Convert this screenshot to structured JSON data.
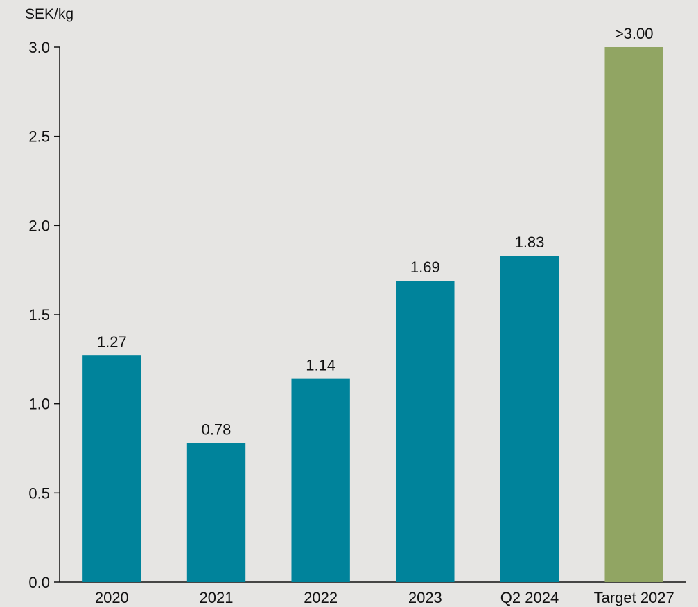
{
  "chart_data": {
    "type": "bar",
    "unit_label": "SEK/kg",
    "categories": [
      "2020",
      "2021",
      "2022",
      "2023",
      "Q2 2024",
      "Target 2027"
    ],
    "values": [
      1.27,
      0.78,
      1.14,
      1.69,
      1.83,
      3.0
    ],
    "data_labels": [
      "1.27",
      "0.78",
      "1.14",
      "1.69",
      "1.83",
      ">3.00"
    ],
    "bar_colors": [
      "#00839b",
      "#00839b",
      "#00839b",
      "#00839b",
      "#00839b",
      "#91a563"
    ],
    "ylim": [
      0,
      3.0
    ],
    "yticks": [
      0.0,
      0.5,
      1.0,
      1.5,
      2.0,
      2.5,
      3.0
    ],
    "ytick_labels": [
      "0.0",
      "0.5",
      "1.0",
      "1.5",
      "2.0",
      "2.5",
      "3.0"
    ],
    "grid": false,
    "legend": "none"
  },
  "colors": {
    "background": "#e6e5e3",
    "axis": "#111111",
    "primary_bar": "#00839b",
    "target_bar": "#91a563"
  }
}
